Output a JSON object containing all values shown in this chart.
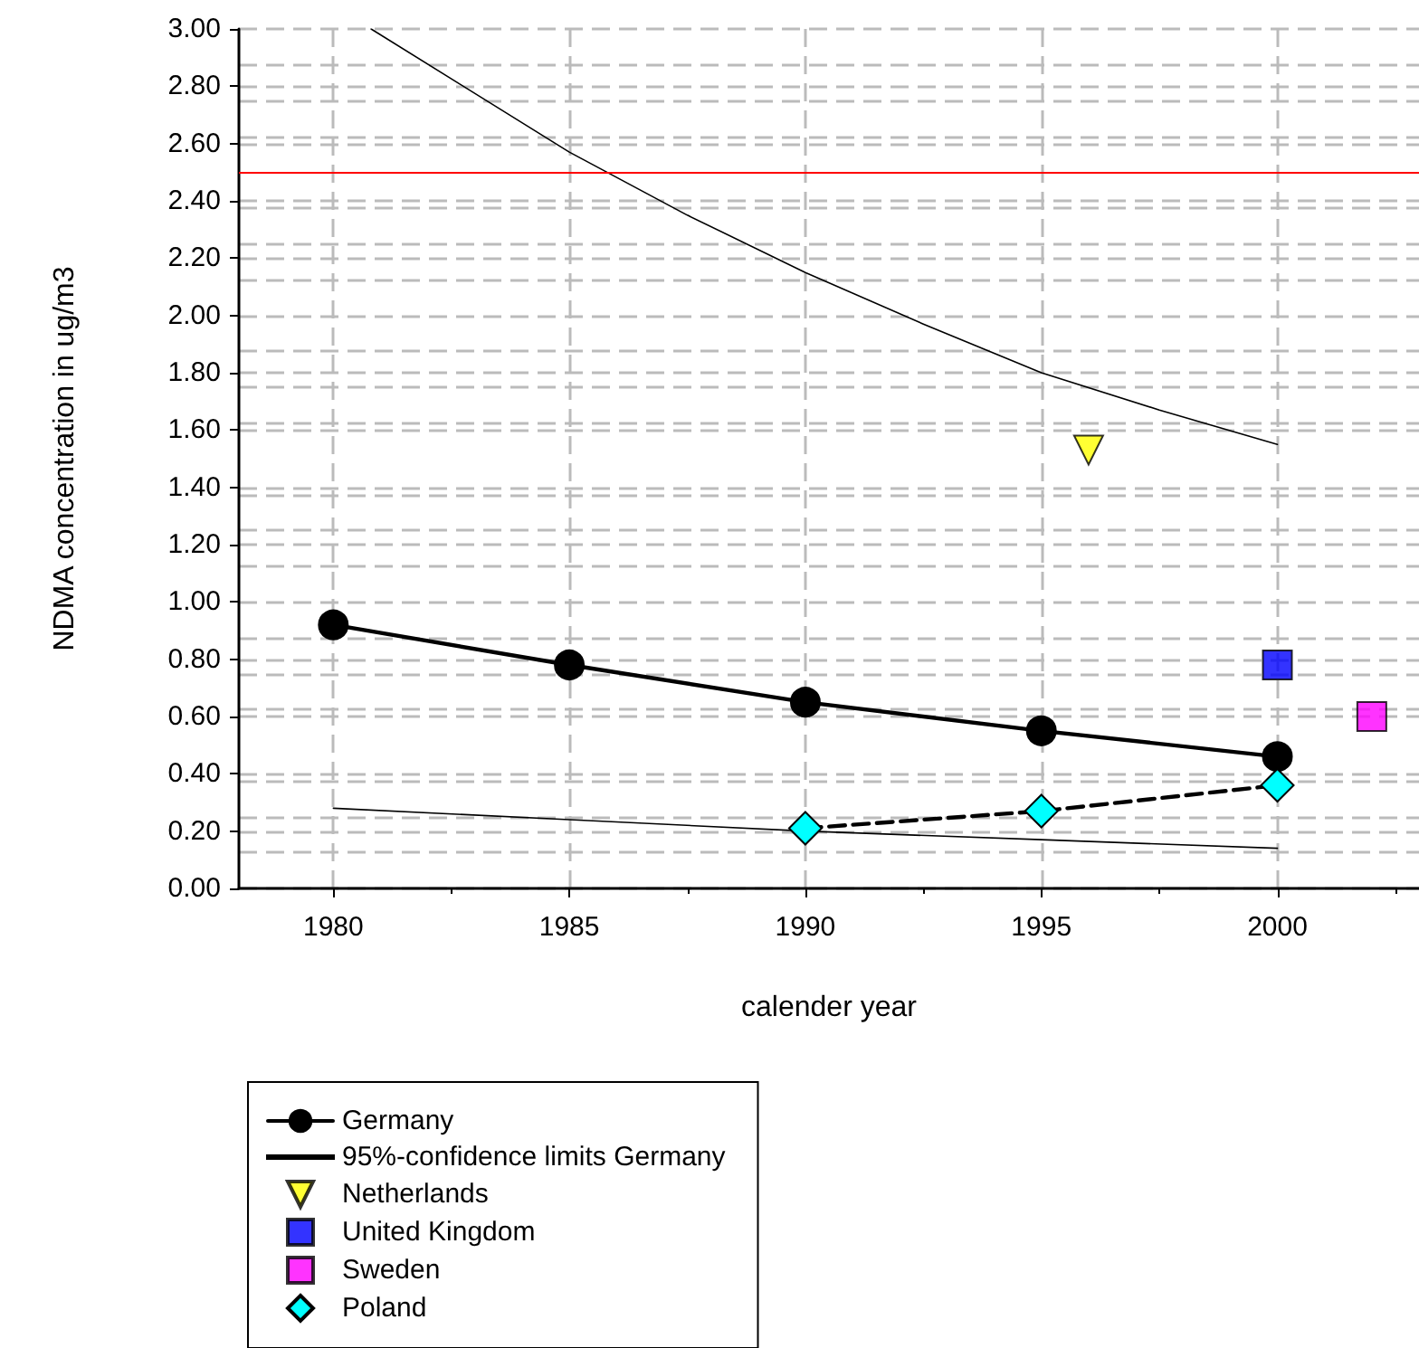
{
  "chart_data": {
    "type": "line",
    "xlabel": "calender year",
    "ylabel": "NDMA concentration in ug/m3",
    "xlim": [
      1978,
      2003
    ],
    "xticks": [
      1980,
      1985,
      1990,
      1995,
      2000
    ],
    "ylim": [
      0,
      3
    ],
    "yticks": [
      {
        "value": 0,
        "label": "0.00"
      },
      {
        "value": 0.2,
        "label": "0.20"
      },
      {
        "value": 0.4,
        "label": "0.40"
      },
      {
        "value": 0.6,
        "label": "0.60"
      },
      {
        "value": 0.8,
        "label": "0.80"
      },
      {
        "value": 1,
        "label": "1.00"
      },
      {
        "value": 1.2,
        "label": "1.20"
      },
      {
        "value": 1.4,
        "label": "1.40"
      },
      {
        "value": 1.6,
        "label": "1.60"
      },
      {
        "value": 1.8,
        "label": "1.80"
      },
      {
        "value": 2,
        "label": "2.00"
      },
      {
        "value": 2.2,
        "label": "2.20"
      },
      {
        "value": 2.4,
        "label": "2.40"
      },
      {
        "value": 2.6,
        "label": "2.60"
      },
      {
        "value": 2.8,
        "label": "2.80"
      },
      {
        "value": 3,
        "label": "3.00"
      }
    ],
    "grid": true,
    "legend": "bottom left",
    "ref_lines": [
      {
        "axis": "y",
        "value": 2.5,
        "color": "#ff0000",
        "line_style": "solid"
      }
    ],
    "series": [
      {
        "name": "Germany",
        "color": "#000000",
        "marker": "circle",
        "line_style": "solid",
        "x": [
          1980,
          1985,
          1990,
          1995,
          2000
        ],
        "values": [
          0.92,
          0.78,
          0.65,
          0.55,
          0.46
        ]
      },
      {
        "name": "95%-confidence limits Germany",
        "color": "#000000",
        "marker": "none",
        "line_style": "solid",
        "x": [
          1980.8,
          1985,
          1987.5,
          1990,
          1992.5,
          1995,
          1997.5,
          2000
        ],
        "values": [
          3.0,
          2.57,
          2.35,
          2.15,
          1.97,
          1.8,
          1.67,
          1.55
        ]
      },
      {
        "color": "#000000",
        "marker": "none",
        "line_style": "solid",
        "x": [
          1980,
          1985,
          1990,
          1995,
          2000
        ],
        "values": [
          0.28,
          0.24,
          0.2,
          0.17,
          0.14
        ]
      },
      {
        "name": "Netherlands",
        "type": "scatter",
        "color": "#ffff00",
        "marker": "triangle-down",
        "x": [
          1996
        ],
        "values": [
          1.53
        ]
      },
      {
        "name": "United Kingdom",
        "type": "scatter",
        "color": "#0000ff",
        "marker": "square",
        "x": [
          2000
        ],
        "values": [
          0.78
        ]
      },
      {
        "name": "Sweden",
        "type": "scatter",
        "color": "#ff00ff",
        "marker": "square",
        "x": [
          2002
        ],
        "values": [
          0.6
        ]
      },
      {
        "name": "Poland",
        "color": "#00ffff",
        "marker": "diamond",
        "line_style": "dashed",
        "x": [
          1990,
          1995,
          2000
        ],
        "values": [
          0.21,
          0.27,
          0.36
        ]
      }
    ]
  }
}
